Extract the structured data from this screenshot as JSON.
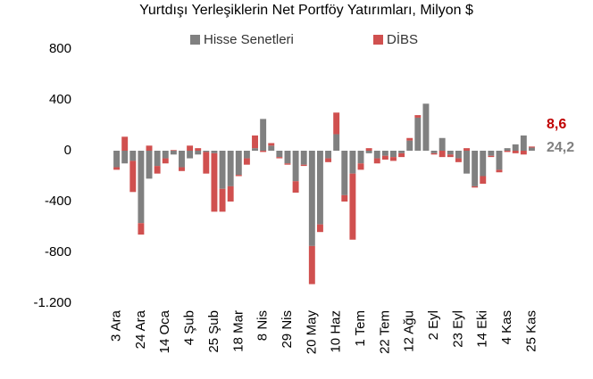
{
  "chart_data": {
    "type": "stacked_bar",
    "title": "Yurtdışı Yerleşiklerin Net Portföy Yatırımları, Milyon $",
    "categories": [
      "3 Ara",
      null,
      null,
      "24 Ara",
      null,
      null,
      "14 Oca",
      null,
      null,
      "4 Şub",
      null,
      null,
      "25 Şub",
      null,
      null,
      "18 Mar",
      null,
      null,
      "8 Nis",
      null,
      null,
      "29 Nis",
      null,
      null,
      "20 May",
      null,
      null,
      "10 Haz",
      null,
      null,
      "1 Tem",
      null,
      null,
      "22 Tem",
      null,
      null,
      "12 Ağu",
      null,
      null,
      "2 Eyl",
      null,
      null,
      "23 Eyl",
      null,
      null,
      "14 Eki",
      null,
      null,
      "4 Kas",
      null,
      null,
      "25 Kas"
    ],
    "series": [
      {
        "name": "Hisse Senetleri",
        "color": "#808080",
        "values": [
          -130,
          -100,
          -80,
          -570,
          -220,
          -120,
          -60,
          -30,
          -130,
          -60,
          -30,
          -10,
          -20,
          -300,
          -280,
          -190,
          -60,
          20,
          250,
          40,
          -50,
          -100,
          -240,
          -110,
          -750,
          -580,
          -60,
          130,
          -350,
          -180,
          -100,
          -20,
          -60,
          -40,
          -50,
          -20,
          80,
          260,
          370,
          -20,
          100,
          -30,
          -60,
          -180,
          -280,
          -200,
          -40,
          -150,
          20,
          50,
          120,
          24.2
        ],
        "value_labels": [
          null,
          null,
          null,
          null,
          null,
          null,
          null,
          null,
          null,
          null,
          null,
          null,
          null,
          null,
          null,
          null,
          null,
          null,
          null,
          null,
          null,
          null,
          null,
          null,
          null,
          null,
          null,
          null,
          null,
          null,
          null,
          null,
          null,
          null,
          null,
          null,
          null,
          null,
          null,
          null,
          null,
          null,
          null,
          null,
          null,
          null,
          null,
          null,
          null,
          null,
          null,
          "24,2"
        ]
      },
      {
        "name": "DİBS",
        "color": "#d0504f",
        "values": [
          -20,
          110,
          -245,
          -90,
          40,
          -60,
          -40,
          5,
          -30,
          40,
          20,
          -170,
          -460,
          -180,
          -120,
          -10,
          -50,
          100,
          -10,
          20,
          -10,
          -10,
          -90,
          -10,
          -300,
          -60,
          -30,
          170,
          -50,
          -520,
          -50,
          20,
          -40,
          -30,
          -30,
          -30,
          20,
          20,
          0,
          -10,
          -50,
          -20,
          -30,
          20,
          -10,
          -60,
          -10,
          -20,
          -10,
          -20,
          -30,
          8.6
        ],
        "value_labels": [
          null,
          null,
          null,
          null,
          null,
          null,
          null,
          null,
          null,
          null,
          null,
          null,
          null,
          null,
          null,
          null,
          null,
          null,
          null,
          null,
          null,
          null,
          null,
          null,
          null,
          null,
          null,
          null,
          null,
          null,
          null,
          null,
          null,
          null,
          null,
          null,
          null,
          null,
          null,
          null,
          null,
          null,
          null,
          null,
          null,
          null,
          null,
          null,
          null,
          null,
          null,
          "8,6"
        ]
      }
    ],
    "ylim": [
      -1200,
      800
    ],
    "yticks": [
      {
        "value": -1200,
        "label": "-1.200"
      },
      -800,
      -400,
      0,
      400,
      800
    ],
    "grid": false,
    "legend": "top"
  }
}
